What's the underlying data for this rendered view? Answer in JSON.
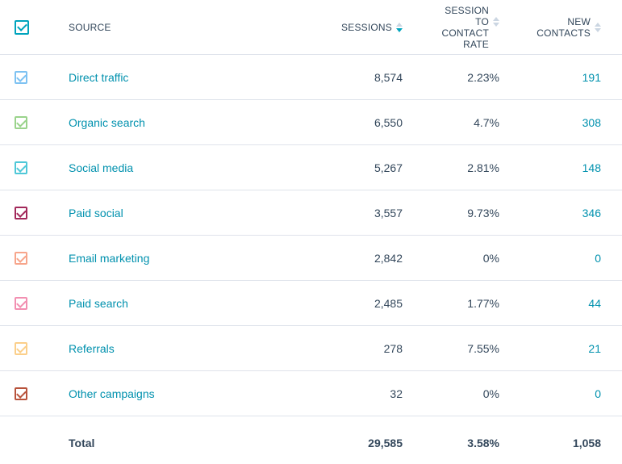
{
  "header": {
    "source": "SOURCE",
    "sessions": "SESSIONS",
    "rate_line1": "SESSION",
    "rate_line2": "TO",
    "rate_line3": "CONTACT",
    "rate_line4": "RATE",
    "contacts_line1": "NEW",
    "contacts_line2": "CONTACTS"
  },
  "colors": {
    "accent": "#00a4bd",
    "link": "#0091ae",
    "text": "#33475b",
    "border": "#dfe3eb"
  },
  "rows": [
    {
      "source": "Direct traffic",
      "sessions": "8,574",
      "rate": "2.23%",
      "contacts": "191",
      "color": "#7ec2f2"
    },
    {
      "source": "Organic search",
      "sessions": "6,550",
      "rate": "4.7%",
      "contacts": "308",
      "color": "#9ad38b"
    },
    {
      "source": "Social media",
      "sessions": "5,267",
      "rate": "2.81%",
      "contacts": "148",
      "color": "#4fc8d8"
    },
    {
      "source": "Paid social",
      "sessions": "3,557",
      "rate": "9.73%",
      "contacts": "346",
      "color": "#a2285a"
    },
    {
      "source": "Email marketing",
      "sessions": "2,842",
      "rate": "0%",
      "contacts": "0",
      "color": "#f7a58b"
    },
    {
      "source": "Paid search",
      "sessions": "2,485",
      "rate": "1.77%",
      "contacts": "44",
      "color": "#f28fb1"
    },
    {
      "source": "Referrals",
      "sessions": "278",
      "rate": "7.55%",
      "contacts": "21",
      "color": "#fbcf8a"
    },
    {
      "source": "Other campaigns",
      "sessions": "32",
      "rate": "0%",
      "contacts": "0",
      "color": "#b8533c"
    }
  ],
  "total": {
    "label": "Total",
    "sessions": "29,585",
    "rate": "3.58%",
    "contacts": "1,058"
  }
}
